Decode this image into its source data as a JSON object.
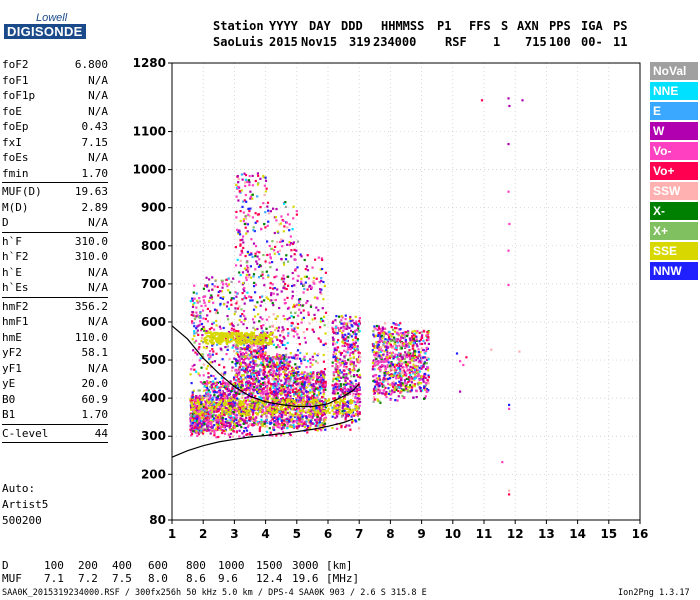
{
  "logo": {
    "brand": "Lowell",
    "name": "DIGISONDE"
  },
  "header": {
    "labels": [
      "Station",
      "YYYY",
      "DAY",
      "DDD",
      "HHMMSS",
      "P1",
      "FFS",
      "S",
      "AXN",
      "PPS",
      "IGA",
      "PS"
    ],
    "values": [
      "SaoLuis",
      "2015",
      "Nov15",
      "319",
      "234000",
      "RSF",
      "",
      "1",
      "715",
      "100",
      "00-",
      "11"
    ]
  },
  "params": [
    {
      "name": "foF2",
      "value": "6.800"
    },
    {
      "name": "foF1",
      "value": "N/A"
    },
    {
      "name": "foF1p",
      "value": "N/A"
    },
    {
      "name": "foE",
      "value": "N/A"
    },
    {
      "name": "foEp",
      "value": "0.43"
    },
    {
      "name": "fxI",
      "value": "7.15"
    },
    {
      "name": "foEs",
      "value": "N/A"
    },
    {
      "name": "fmin",
      "value": "1.70"
    },
    {
      "sep": true
    },
    {
      "name": "MUF(D)",
      "value": "19.63"
    },
    {
      "name": "M(D)",
      "value": "2.89"
    },
    {
      "name": "D",
      "value": "N/A"
    },
    {
      "sep": true
    },
    {
      "name": "h`F",
      "value": "310.0"
    },
    {
      "name": "h`F2",
      "value": "310.0"
    },
    {
      "name": "h`E",
      "value": "N/A"
    },
    {
      "name": "h`Es",
      "value": "N/A"
    },
    {
      "sep": true
    },
    {
      "name": "hmF2",
      "value": "356.2"
    },
    {
      "name": "hmF1",
      "value": "N/A"
    },
    {
      "name": "hmE",
      "value": "110.0"
    },
    {
      "name": "yF2",
      "value": "58.1"
    },
    {
      "name": "yF1",
      "value": "N/A"
    },
    {
      "name": "yE",
      "value": "20.0"
    },
    {
      "name": "B0",
      "value": "60.9"
    },
    {
      "name": "B1",
      "value": "1.70"
    },
    {
      "sep": true
    },
    {
      "name": "C-level",
      "value": "44"
    },
    {
      "sep": true
    }
  ],
  "autoscaling": {
    "line1": "Auto:",
    "line2": "Artist5",
    "line3": "500200"
  },
  "muf_table": {
    "d_label": "D",
    "d_values": [
      "100",
      "200",
      "400",
      "600",
      "800",
      "1000",
      "1500",
      "3000"
    ],
    "d_unit": "[km]",
    "muf_label": "MUF",
    "muf_values": [
      "7.1",
      "7.2",
      "7.5",
      "8.0",
      "8.6",
      "9.6",
      "12.4",
      "19.6"
    ],
    "muf_unit": "[MHz]"
  },
  "footer": {
    "left": "SAA0K_2015319234000.RSF / 300fx256h 50 kHz 5.0 km / DPS-4 SAA0K 903 / 2.6 S 315.8 E",
    "right": "Ion2Png 1.3.17"
  },
  "chart_data": {
    "type": "scatter",
    "xlim": [
      1,
      16
    ],
    "ylim": [
      80,
      1280
    ],
    "x_ticks": [
      "1",
      "2",
      "3",
      "4",
      "5",
      "6",
      "7",
      "8",
      "9",
      "10",
      "11",
      "12",
      "13",
      "14",
      "15",
      "16"
    ],
    "y_ticks": [
      {
        "v": 80,
        "label": "80"
      },
      {
        "v": 200,
        "label": "200"
      },
      {
        "v": 300,
        "label": "300"
      },
      {
        "v": 400,
        "label": "400"
      },
      {
        "v": 500,
        "label": "500"
      },
      {
        "v": 600,
        "label": "600"
      },
      {
        "v": 700,
        "label": "700"
      },
      {
        "v": 800,
        "label": "800"
      },
      {
        "v": 900,
        "label": "900"
      },
      {
        "v": 1000,
        "label": "1000"
      },
      {
        "v": 1100,
        "label": "1100"
      },
      {
        "v": 1280,
        "label": "1280"
      }
    ],
    "grid": true,
    "legend_position": "right",
    "legend": [
      {
        "name": "NoVal",
        "color": "#a0a0a0"
      },
      {
        "name": "NNE",
        "color": "#00e0ff"
      },
      {
        "name": "E",
        "color": "#3aa8ff"
      },
      {
        "name": "W",
        "color": "#b000b0"
      },
      {
        "name": "Vo-",
        "color": "#ff40c0"
      },
      {
        "name": "Vo+",
        "color": "#ff0050"
      },
      {
        "name": "SSW",
        "color": "#ffb0b0"
      },
      {
        "name": "X-",
        "color": "#008000"
      },
      {
        "name": "X+",
        "color": "#80c060"
      },
      {
        "name": "SSE",
        "color": "#d8d800"
      },
      {
        "name": "NNW",
        "color": "#2020ff"
      }
    ],
    "clusters": [
      {
        "xmin": 1.55,
        "xmax": 2.0,
        "ymin": 300,
        "ymax": 700,
        "n": 420,
        "yc": 360
      },
      {
        "xmin": 2.0,
        "xmax": 3.0,
        "ymin": 300,
        "ymax": 720,
        "n": 700,
        "yc": 380
      },
      {
        "xmin": 3.0,
        "xmax": 4.0,
        "ymin": 300,
        "ymax": 1000,
        "n": 1100,
        "yc": 450
      },
      {
        "xmin": 4.0,
        "xmax": 5.0,
        "ymin": 300,
        "ymax": 920,
        "n": 900,
        "yc": 420
      },
      {
        "xmin": 5.0,
        "xmax": 5.9,
        "ymin": 310,
        "ymax": 780,
        "n": 650,
        "yc": 400
      },
      {
        "xmin": 6.1,
        "xmax": 7.0,
        "ymin": 320,
        "ymax": 620,
        "n": 520,
        "yc": 480
      },
      {
        "xmin": 7.4,
        "xmax": 8.3,
        "ymin": 390,
        "ymax": 600,
        "n": 450,
        "yc": 500
      },
      {
        "xmin": 8.3,
        "xmax": 9.2,
        "ymin": 400,
        "ymax": 580,
        "n": 380,
        "yc": 500
      }
    ],
    "yellow_band": {
      "x1": 1.6,
      "x2": 6.9,
      "y": 380,
      "spread": 20
    },
    "yellow_upper": {
      "x1": 2.0,
      "x2": 4.2,
      "y": 560,
      "spread": 15
    },
    "isolated_points": [
      {
        "x": 11.75,
        "y": 1190
      },
      {
        "x": 11.78,
        "y": 1170
      },
      {
        "x": 11.75,
        "y": 1070
      },
      {
        "x": 11.75,
        "y": 945
      },
      {
        "x": 11.78,
        "y": 860
      },
      {
        "x": 11.75,
        "y": 790
      },
      {
        "x": 11.75,
        "y": 700
      },
      {
        "x": 11.77,
        "y": 385
      },
      {
        "x": 11.77,
        "y": 375
      },
      {
        "x": 11.55,
        "y": 235
      },
      {
        "x": 11.77,
        "y": 160
      },
      {
        "x": 11.77,
        "y": 150
      },
      {
        "x": 10.9,
        "y": 1185
      },
      {
        "x": 12.2,
        "y": 1185
      },
      {
        "x": 12.1,
        "y": 525
      },
      {
        "x": 10.2,
        "y": 500
      },
      {
        "x": 10.4,
        "y": 510
      },
      {
        "x": 10.3,
        "y": 490
      },
      {
        "x": 10.1,
        "y": 520
      },
      {
        "x": 10.2,
        "y": 420
      },
      {
        "x": 11.2,
        "y": 530
      }
    ],
    "lower_curve": [
      [
        1,
        245
      ],
      [
        1.5,
        262
      ],
      [
        2,
        275
      ],
      [
        2.5,
        285
      ],
      [
        3,
        292
      ],
      [
        3.5,
        298
      ],
      [
        4,
        302
      ],
      [
        4.5,
        307
      ],
      [
        5,
        312
      ],
      [
        5.5,
        318
      ],
      [
        6,
        326
      ],
      [
        6.5,
        336
      ],
      [
        6.8,
        345
      ]
    ],
    "upper_curve": [
      [
        1,
        590
      ],
      [
        1.5,
        555
      ],
      [
        2,
        505
      ],
      [
        2.5,
        465
      ],
      [
        3,
        430
      ],
      [
        3.5,
        405
      ],
      [
        4,
        390
      ],
      [
        4.5,
        383
      ],
      [
        5,
        378
      ],
      [
        5.5,
        378
      ],
      [
        6,
        385
      ],
      [
        6.5,
        405
      ],
      [
        6.8,
        420
      ],
      [
        7.0,
        438
      ]
    ]
  }
}
